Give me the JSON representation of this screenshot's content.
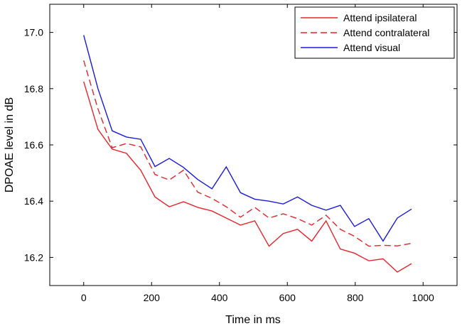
{
  "chart_data": {
    "type": "line",
    "title": "",
    "xlabel": "Time in ms",
    "ylabel": "DPOAE level in dB",
    "xlim": [
      -100,
      1100
    ],
    "ylim": [
      16.1,
      17.1
    ],
    "xticks": [
      0,
      200,
      400,
      600,
      800,
      1000
    ],
    "yticks": [
      16.2,
      16.4,
      16.6,
      16.8,
      17.0
    ],
    "xtick_labels": [
      "0",
      "200",
      "400",
      "600",
      "800",
      "1000"
    ],
    "ytick_labels": [
      "16.2",
      "16.4",
      "16.6",
      "16.8",
      "17.0"
    ],
    "grid": false,
    "legend_position": "top-right",
    "x": [
      0,
      42,
      84,
      126,
      168,
      210,
      252,
      294,
      336,
      378,
      420,
      462,
      504,
      546,
      588,
      630,
      672,
      714,
      756,
      798,
      840,
      882,
      924,
      966
    ],
    "series": [
      {
        "name": "Attend ipsilateral",
        "color": "#e8242a",
        "dash": "solid",
        "values": [
          16.825,
          16.655,
          16.585,
          16.57,
          16.51,
          16.415,
          16.38,
          16.398,
          16.378,
          16.365,
          16.34,
          16.315,
          16.33,
          16.24,
          16.285,
          16.3,
          16.258,
          16.33,
          16.23,
          16.215,
          16.188,
          16.195,
          16.148,
          16.178
        ]
      },
      {
        "name": "Attend contralateral",
        "color": "#e8242a",
        "dash": "dashed",
        "values": [
          16.9,
          16.728,
          16.59,
          16.605,
          16.593,
          16.495,
          16.475,
          16.51,
          16.432,
          16.41,
          16.38,
          16.343,
          16.378,
          16.34,
          16.355,
          16.338,
          16.315,
          16.35,
          16.3,
          16.275,
          16.24,
          16.243,
          16.241,
          16.25
        ]
      },
      {
        "name": "Attend visual",
        "color": "#1a1ae0",
        "dash": "solid",
        "values": [
          16.99,
          16.8,
          16.65,
          16.628,
          16.62,
          16.523,
          16.552,
          16.52,
          16.477,
          16.444,
          16.522,
          16.43,
          16.407,
          16.4,
          16.39,
          16.415,
          16.385,
          16.368,
          16.385,
          16.31,
          16.338,
          16.258,
          16.34,
          16.372
        ]
      }
    ]
  }
}
